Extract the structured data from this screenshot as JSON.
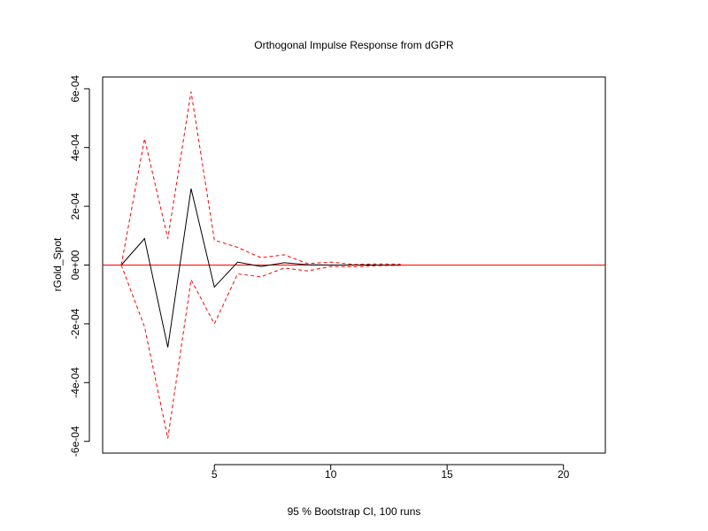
{
  "chart_data": {
    "type": "line",
    "title": "Orthogonal Impulse Response from dGPR",
    "xlabel": "95 % Bootstrap CI,  100 runs",
    "ylabel": "rGold_Spot",
    "xlim": [
      0.2,
      21.8
    ],
    "ylim": [
      -0.00064,
      0.00064
    ],
    "x_ticks": [
      5,
      10,
      15,
      20
    ],
    "x_tick_labels": [
      "5",
      "10",
      "15",
      "20"
    ],
    "y_ticks": [
      -0.0006,
      -0.0004,
      -0.0002,
      0,
      0.0002,
      0.0004,
      0.0006
    ],
    "y_tick_labels": [
      "-6e-04",
      "-4e-04",
      "-2e-04",
      "0e+00",
      "2e-04",
      "4e-04",
      "6e-04"
    ],
    "reference_line": {
      "y": 0,
      "color": "#ff0000"
    },
    "series": [
      {
        "x": [
          1,
          2,
          3,
          4,
          5,
          6,
          7,
          8,
          9,
          10,
          11,
          12,
          13
        ],
        "y": [
          0,
          9e-05,
          -0.00028,
          0.00026,
          -7.5e-05,
          1e-05,
          -5e-06,
          8e-06,
          1e-06,
          0,
          0,
          0,
          0
        ],
        "color": "#000000",
        "dash": "solid"
      },
      {
        "x": [
          1,
          2,
          3,
          4,
          5,
          6,
          7,
          8,
          9,
          10,
          11,
          12,
          13
        ],
        "y": [
          0,
          0.00043,
          9e-05,
          0.00059,
          8.5e-05,
          6e-05,
          2.5e-05,
          3.5e-05,
          5e-06,
          1e-05,
          2e-06,
          4e-06,
          3e-06
        ],
        "color": "#ff0000",
        "dash": "dashed"
      },
      {
        "x": [
          1,
          2,
          3,
          4,
          5,
          6,
          7,
          8,
          9,
          10,
          11,
          12,
          13
        ],
        "y": [
          0,
          -0.00021,
          -0.00059,
          -5e-05,
          -0.0002,
          -3e-05,
          -4e-05,
          -1e-05,
          -2e-05,
          -5e-06,
          -6e-06,
          -2e-06,
          -1e-06
        ],
        "color": "#ff0000",
        "dash": "dashed"
      }
    ]
  }
}
